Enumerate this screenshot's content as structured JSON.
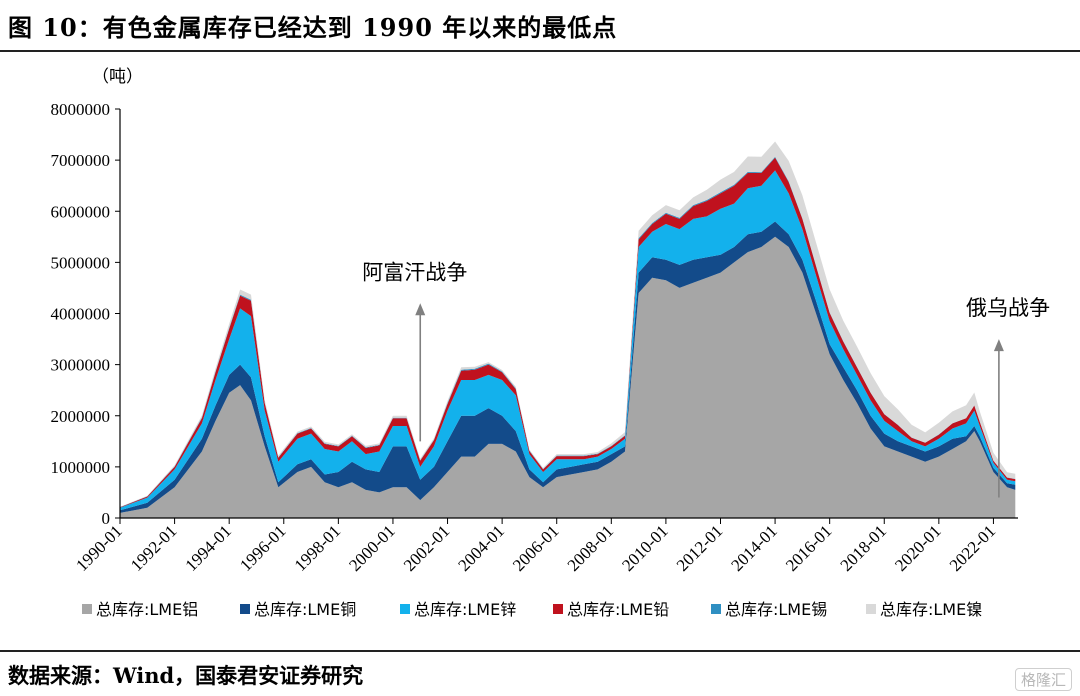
{
  "header": {
    "title": "图 10：有色金属库存已经达到 1990 年以来的最低点"
  },
  "footer": {
    "source": "数据来源：Wind，国泰君安证券研究",
    "watermark": "格隆汇"
  },
  "chart_data": {
    "type": "area",
    "stacked": true,
    "unit": "（吨）",
    "ylim": [
      0,
      8000000
    ],
    "y_ticks": [
      0,
      1000000,
      2000000,
      3000000,
      4000000,
      5000000,
      6000000,
      7000000,
      8000000
    ],
    "y_tick_labels": [
      "0",
      "1000000",
      "2000000",
      "3000000",
      "4000000",
      "5000000",
      "6000000",
      "7000000",
      "8000000"
    ],
    "x_ticks": [
      "1990-01",
      "1992-01",
      "1994-01",
      "1996-01",
      "1998-01",
      "2000-01",
      "2002-01",
      "2004-01",
      "2006-01",
      "2008-01",
      "2010-01",
      "2012-01",
      "2014-01",
      "2016-01",
      "2018-01",
      "2020-01",
      "2022-01"
    ],
    "x": [
      1990.0,
      1991.0,
      1992.0,
      1993.0,
      1993.5,
      1994.0,
      1994.4,
      1994.8,
      1995.3,
      1995.8,
      1996.5,
      1997.0,
      1997.5,
      1998.0,
      1998.5,
      1999.0,
      1999.5,
      2000.0,
      2000.5,
      2001.0,
      2001.5,
      2002.0,
      2002.5,
      2003.0,
      2003.5,
      2004.0,
      2004.5,
      2005.0,
      2005.5,
      2006.0,
      2006.5,
      2007.0,
      2007.5,
      2008.0,
      2008.5,
      2009.0,
      2009.5,
      2010.0,
      2010.5,
      2011.0,
      2011.5,
      2012.0,
      2012.5,
      2013.0,
      2013.5,
      2014.0,
      2014.5,
      2015.0,
      2015.5,
      2016.0,
      2016.5,
      2017.0,
      2017.5,
      2018.0,
      2018.5,
      2019.0,
      2019.5,
      2020.0,
      2020.5,
      2021.0,
      2021.3,
      2021.5,
      2022.0,
      2022.5,
      2022.8
    ],
    "series": [
      {
        "name": "总库存:LME铝",
        "color": "#a6a6a6",
        "values": [
          100000,
          200000,
          600000,
          1300000,
          1900000,
          2450000,
          2600000,
          2300000,
          1400000,
          600000,
          900000,
          1000000,
          700000,
          600000,
          700000,
          550000,
          500000,
          600000,
          600000,
          350000,
          600000,
          900000,
          1200000,
          1200000,
          1450000,
          1450000,
          1300000,
          800000,
          600000,
          800000,
          850000,
          900000,
          950000,
          1100000,
          1300000,
          4400000,
          4700000,
          4650000,
          4500000,
          4600000,
          4700000,
          4800000,
          5000000,
          5200000,
          5300000,
          5500000,
          5300000,
          4800000,
          4000000,
          3200000,
          2700000,
          2250000,
          1750000,
          1400000,
          1300000,
          1200000,
          1100000,
          1200000,
          1350000,
          1500000,
          1700000,
          1500000,
          900000,
          600000,
          550000
        ]
      },
      {
        "name": "总库存:LME铜",
        "color": "#134b8a",
        "values": [
          50000,
          100000,
          150000,
          250000,
          300000,
          350000,
          400000,
          450000,
          200000,
          100000,
          150000,
          150000,
          150000,
          300000,
          400000,
          400000,
          400000,
          800000,
          800000,
          400000,
          400000,
          600000,
          800000,
          800000,
          700000,
          550000,
          400000,
          150000,
          100000,
          150000,
          150000,
          150000,
          150000,
          150000,
          100000,
          400000,
          400000,
          400000,
          450000,
          450000,
          400000,
          350000,
          300000,
          350000,
          300000,
          300000,
          250000,
          250000,
          250000,
          200000,
          250000,
          250000,
          250000,
          250000,
          200000,
          200000,
          200000,
          200000,
          200000,
          100000,
          100000,
          100000,
          80000,
          80000,
          100000
        ]
      },
      {
        "name": "总库存:LME锌",
        "color": "#13b1ec",
        "values": [
          50000,
          100000,
          200000,
          300000,
          500000,
          700000,
          1100000,
          1200000,
          500000,
          400000,
          500000,
          500000,
          500000,
          400000,
          400000,
          300000,
          400000,
          400000,
          400000,
          250000,
          400000,
          600000,
          700000,
          700000,
          650000,
          700000,
          700000,
          300000,
          200000,
          200000,
          150000,
          100000,
          100000,
          100000,
          150000,
          500000,
          500000,
          700000,
          700000,
          800000,
          800000,
          900000,
          850000,
          900000,
          900000,
          1000000,
          800000,
          600000,
          500000,
          450000,
          350000,
          300000,
          300000,
          250000,
          200000,
          100000,
          100000,
          150000,
          200000,
          250000,
          300000,
          200000,
          100000,
          70000,
          70000
        ]
      },
      {
        "name": "总库存:LME铅",
        "color": "#c0121e",
        "values": [
          10000,
          20000,
          50000,
          100000,
          150000,
          200000,
          250000,
          300000,
          150000,
          80000,
          100000,
          100000,
          100000,
          100000,
          100000,
          120000,
          120000,
          150000,
          150000,
          120000,
          120000,
          130000,
          180000,
          200000,
          200000,
          150000,
          120000,
          60000,
          50000,
          60000,
          60000,
          60000,
          50000,
          50000,
          60000,
          150000,
          150000,
          200000,
          200000,
          250000,
          300000,
          300000,
          350000,
          300000,
          250000,
          250000,
          220000,
          200000,
          180000,
          160000,
          150000,
          150000,
          150000,
          130000,
          120000,
          70000,
          70000,
          80000,
          100000,
          100000,
          100000,
          80000,
          40000,
          40000,
          40000
        ]
      },
      {
        "name": "总库存:LME锡",
        "color": "#2f8fc2",
        "values": [
          5000,
          5000,
          10000,
          15000,
          15000,
          20000,
          20000,
          20000,
          10000,
          10000,
          10000,
          10000,
          10000,
          10000,
          10000,
          10000,
          10000,
          10000,
          10000,
          10000,
          10000,
          20000,
          20000,
          20000,
          20000,
          15000,
          15000,
          10000,
          10000,
          10000,
          10000,
          10000,
          10000,
          10000,
          10000,
          20000,
          20000,
          20000,
          20000,
          20000,
          20000,
          20000,
          20000,
          20000,
          15000,
          15000,
          15000,
          10000,
          10000,
          10000,
          10000,
          5000,
          5000,
          5000,
          5000,
          5000,
          5000,
          5000,
          5000,
          5000,
          5000,
          5000,
          5000,
          5000,
          5000
        ]
      },
      {
        "name": "总库存:LME镍",
        "color": "#d9d9d9",
        "values": [
          5000,
          10000,
          20000,
          40000,
          60000,
          80000,
          100000,
          100000,
          50000,
          30000,
          30000,
          30000,
          30000,
          30000,
          30000,
          30000,
          30000,
          40000,
          40000,
          30000,
          30000,
          40000,
          50000,
          40000,
          30000,
          30000,
          30000,
          20000,
          20000,
          30000,
          30000,
          30000,
          30000,
          50000,
          60000,
          150000,
          150000,
          150000,
          150000,
          150000,
          200000,
          250000,
          250000,
          300000,
          300000,
          300000,
          400000,
          450000,
          450000,
          450000,
          400000,
          400000,
          380000,
          350000,
          300000,
          250000,
          200000,
          230000,
          230000,
          250000,
          250000,
          200000,
          150000,
          100000,
          100000
        ]
      }
    ],
    "annotations": [
      {
        "text": "阿富汗战争",
        "x": 2001.0,
        "y": 4200000
      },
      {
        "text": "俄乌战争",
        "x": 2022.2,
        "y": 3500000
      }
    ],
    "legend_position": "bottom",
    "grid": false
  }
}
